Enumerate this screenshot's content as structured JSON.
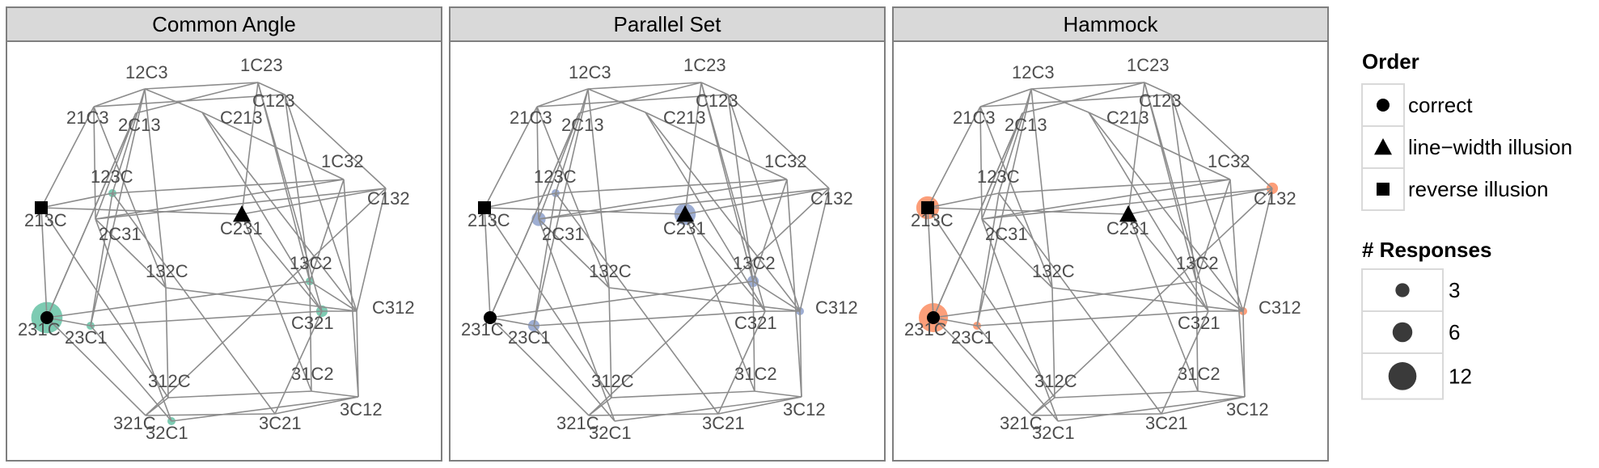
{
  "chart_data": {
    "type": "network",
    "node_order": [
      "12C3",
      "1C23",
      "21C3",
      "2C13",
      "C213",
      "C123",
      "123C",
      "1C32",
      "213C",
      "2C31",
      "C231",
      "C132",
      "132C",
      "13C2",
      "231C",
      "23C1",
      "C321",
      "C312",
      "312C",
      "31C2",
      "321C",
      "32C1",
      "3C21",
      "3C12"
    ],
    "edges": [
      [
        "12C3",
        "1C23"
      ],
      [
        "21C3",
        "C123"
      ],
      [
        "21C3",
        "12C3"
      ],
      [
        "2C13",
        "1C23"
      ],
      [
        "C213",
        "12C3"
      ],
      [
        "C123",
        "1C23"
      ],
      [
        "213C",
        "C231"
      ],
      [
        "123C",
        "1C32"
      ],
      [
        "2C31",
        "C132"
      ],
      [
        "C231",
        "C132"
      ],
      [
        "213C",
        "123C"
      ],
      [
        "2C31",
        "1C32"
      ],
      [
        "231C",
        "13C2"
      ],
      [
        "23C1",
        "C321"
      ],
      [
        "132C",
        "C312"
      ],
      [
        "231C",
        "23C1"
      ],
      [
        "13C2",
        "C312"
      ],
      [
        "C321",
        "C312"
      ],
      [
        "321C",
        "3C21"
      ],
      [
        "32C1",
        "3C12"
      ],
      [
        "312C",
        "31C2"
      ],
      [
        "321C",
        "312C"
      ],
      [
        "31C2",
        "3C12"
      ],
      [
        "3C21",
        "3C12"
      ],
      [
        "21C3",
        "213C"
      ],
      [
        "12C3",
        "123C"
      ],
      [
        "1C23",
        "C231"
      ],
      [
        "C123",
        "C132"
      ],
      [
        "2C13",
        "2C31"
      ],
      [
        "C213",
        "1C32"
      ],
      [
        "213C",
        "231C"
      ],
      [
        "123C",
        "23C1"
      ],
      [
        "2C31",
        "132C"
      ],
      [
        "C231",
        "C321"
      ],
      [
        "1C32",
        "13C2"
      ],
      [
        "C132",
        "C312"
      ],
      [
        "231C",
        "321C"
      ],
      [
        "23C1",
        "32C1"
      ],
      [
        "132C",
        "312C"
      ],
      [
        "C321",
        "3C21"
      ],
      [
        "13C2",
        "31C2"
      ],
      [
        "C312",
        "3C12"
      ],
      [
        "21C3",
        "2C31"
      ],
      [
        "12C3",
        "132C"
      ],
      [
        "1C23",
        "13C2"
      ],
      [
        "C213",
        "C321"
      ],
      [
        "2C13",
        "231C"
      ],
      [
        "C123",
        "C312"
      ],
      [
        "213C",
        "312C"
      ],
      [
        "123C",
        "3C21"
      ],
      [
        "2C31",
        "32C1"
      ],
      [
        "C231",
        "31C2"
      ],
      [
        "1C32",
        "3C12"
      ],
      [
        "C132",
        "321C"
      ],
      [
        "231C",
        "2C13"
      ],
      [
        "23C1",
        "12C3"
      ],
      [
        "132C",
        "21C3"
      ],
      [
        "C321",
        "1C23"
      ],
      [
        "13C2",
        "C123"
      ],
      [
        "C312",
        "C213"
      ]
    ],
    "panels": [
      {
        "title": "Common Angle",
        "color": "#66c2a5",
        "correct": "231C",
        "line_width_illusion": "C231",
        "reverse_illusion": "213C",
        "responses": {
          "231C": 15,
          "123C": 1,
          "23C1": 1,
          "13C2": 1,
          "C321": 2,
          "32C1": 1
        }
      },
      {
        "title": "Parallel Set",
        "color": "#8da0cb",
        "correct": "231C",
        "line_width_illusion": "C231",
        "reverse_illusion": "213C",
        "responses": {
          "C231": 7,
          "2C31": 3,
          "123C": 1,
          "23C1": 2,
          "13C2": 2,
          "C312": 1,
          "231C": 1
        }
      },
      {
        "title": "Hammock",
        "color": "#fc8d62",
        "correct": "231C",
        "line_width_illusion": "C231",
        "reverse_illusion": "213C",
        "responses": {
          "213C": 8,
          "231C": 13,
          "C132": 2,
          "23C1": 1,
          "C312": 1
        }
      }
    ],
    "legend": {
      "order_title": "Order",
      "order_items": [
        "correct",
        "line−width illusion",
        "reverse illusion"
      ],
      "size_title": "# Responses",
      "size_items": [
        3,
        6,
        12
      ]
    },
    "colors": {
      "panel_border": "#7f7f7f",
      "strip_fill": "#d9d9d9",
      "edge": "#8c8c8c",
      "label": "#4d4d4d",
      "marker": "#000000",
      "size_key": "#3a3a3a"
    }
  }
}
